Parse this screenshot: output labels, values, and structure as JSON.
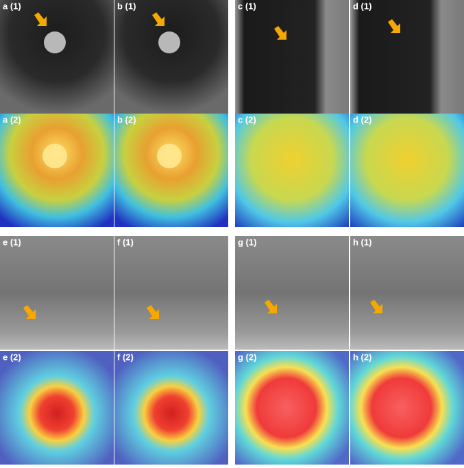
{
  "panels": [
    "a (1)",
    "b (1)",
    "c (1)",
    "d (1)",
    "a (2)",
    "b (2)",
    "c (2)",
    "d (2)",
    "e (1)",
    "f (1)",
    "g (1)",
    "h (1)",
    "e (2)",
    "f (2)",
    "g (2)",
    "h (2)"
  ]
}
